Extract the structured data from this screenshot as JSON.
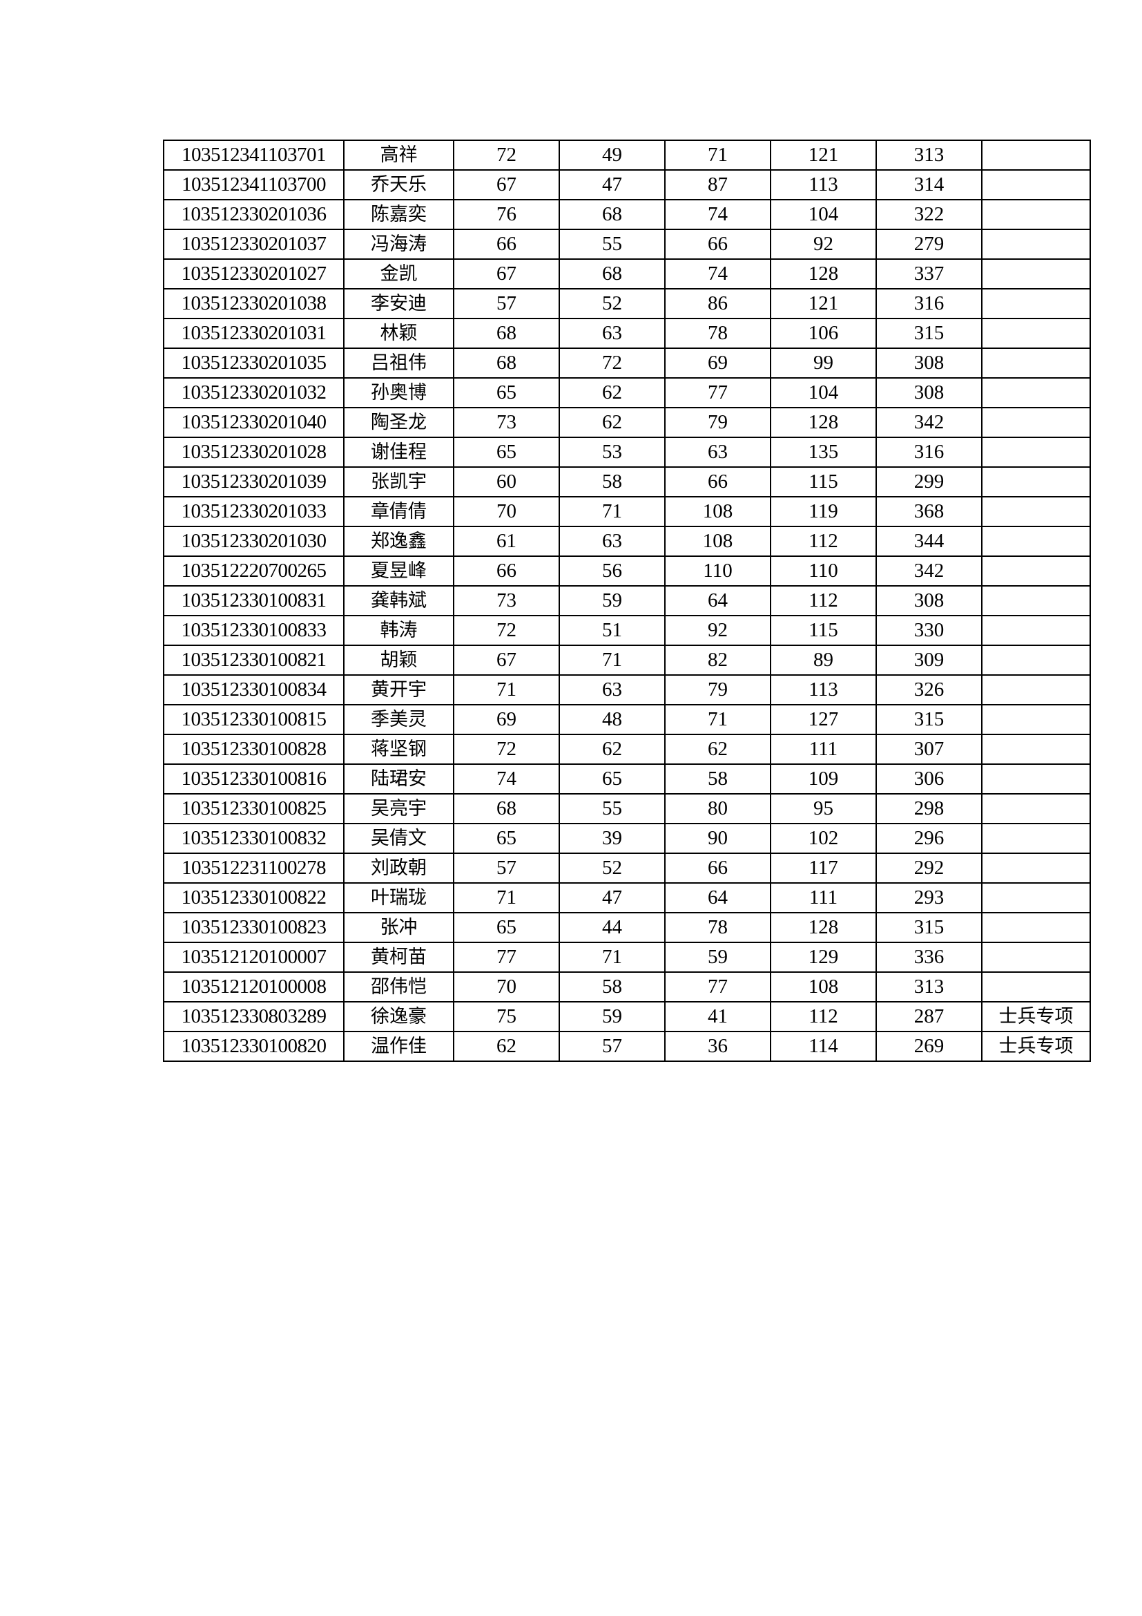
{
  "rows": [
    [
      "103512341103701",
      "高祥",
      "72",
      "49",
      "71",
      "121",
      "313",
      ""
    ],
    [
      "103512341103700",
      "乔天乐",
      "67",
      "47",
      "87",
      "113",
      "314",
      ""
    ],
    [
      "103512330201036",
      "陈嘉奕",
      "76",
      "68",
      "74",
      "104",
      "322",
      ""
    ],
    [
      "103512330201037",
      "冯海涛",
      "66",
      "55",
      "66",
      "92",
      "279",
      ""
    ],
    [
      "103512330201027",
      "金凯",
      "67",
      "68",
      "74",
      "128",
      "337",
      ""
    ],
    [
      "103512330201038",
      "李安迪",
      "57",
      "52",
      "86",
      "121",
      "316",
      ""
    ],
    [
      "103512330201031",
      "林颖",
      "68",
      "63",
      "78",
      "106",
      "315",
      ""
    ],
    [
      "103512330201035",
      "吕祖伟",
      "68",
      "72",
      "69",
      "99",
      "308",
      ""
    ],
    [
      "103512330201032",
      "孙奥博",
      "65",
      "62",
      "77",
      "104",
      "308",
      ""
    ],
    [
      "103512330201040",
      "陶圣龙",
      "73",
      "62",
      "79",
      "128",
      "342",
      ""
    ],
    [
      "103512330201028",
      "谢佳程",
      "65",
      "53",
      "63",
      "135",
      "316",
      ""
    ],
    [
      "103512330201039",
      "张凯宇",
      "60",
      "58",
      "66",
      "115",
      "299",
      ""
    ],
    [
      "103512330201033",
      "章倩倩",
      "70",
      "71",
      "108",
      "119",
      "368",
      ""
    ],
    [
      "103512330201030",
      "郑逸鑫",
      "61",
      "63",
      "108",
      "112",
      "344",
      ""
    ],
    [
      "103512220700265",
      "夏昱峰",
      "66",
      "56",
      "110",
      "110",
      "342",
      ""
    ],
    [
      "103512330100831",
      "龚韩斌",
      "73",
      "59",
      "64",
      "112",
      "308",
      ""
    ],
    [
      "103512330100833",
      "韩涛",
      "72",
      "51",
      "92",
      "115",
      "330",
      ""
    ],
    [
      "103512330100821",
      "胡颖",
      "67",
      "71",
      "82",
      "89",
      "309",
      ""
    ],
    [
      "103512330100834",
      "黄开宇",
      "71",
      "63",
      "79",
      "113",
      "326",
      ""
    ],
    [
      "103512330100815",
      "季美灵",
      "69",
      "48",
      "71",
      "127",
      "315",
      ""
    ],
    [
      "103512330100828",
      "蒋坚钢",
      "72",
      "62",
      "62",
      "111",
      "307",
      ""
    ],
    [
      "103512330100816",
      "陆珺安",
      "74",
      "65",
      "58",
      "109",
      "306",
      ""
    ],
    [
      "103512330100825",
      "吴亮宇",
      "68",
      "55",
      "80",
      "95",
      "298",
      ""
    ],
    [
      "103512330100832",
      "吴倩文",
      "65",
      "39",
      "90",
      "102",
      "296",
      ""
    ],
    [
      "103512231100278",
      "刘政朝",
      "57",
      "52",
      "66",
      "117",
      "292",
      ""
    ],
    [
      "103512330100822",
      "叶瑞珑",
      "71",
      "47",
      "64",
      "111",
      "293",
      ""
    ],
    [
      "103512330100823",
      "张冲",
      "65",
      "44",
      "78",
      "128",
      "315",
      ""
    ],
    [
      "103512120100007",
      "黄柯苗",
      "77",
      "71",
      "59",
      "129",
      "336",
      ""
    ],
    [
      "103512120100008",
      "邵伟恺",
      "70",
      "58",
      "77",
      "108",
      "313",
      ""
    ],
    [
      "103512330803289",
      "徐逸豪",
      "75",
      "59",
      "41",
      "112",
      "287",
      "士兵专项"
    ],
    [
      "103512330100820",
      "温作佳",
      "62",
      "57",
      "36",
      "114",
      "269",
      "士兵专项"
    ]
  ]
}
